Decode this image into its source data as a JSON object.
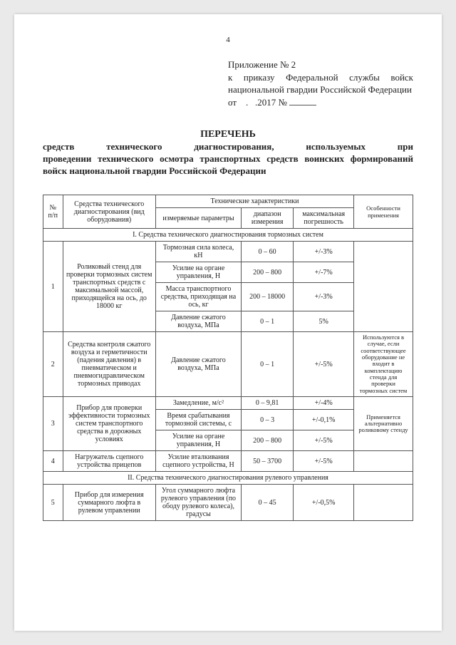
{
  "page_number": "4",
  "appendix": {
    "line1": "Приложение № 2",
    "line2": "к приказу Федеральной службы войск национальной гвардии Российской Федерации",
    "line3_a": "от",
    "line3_b": ".",
    "line3_c": ".2017 №"
  },
  "title": {
    "main": "ПЕРЕЧЕНЬ",
    "sub1": "средств технического диагностирования, используемых при",
    "sub2": "проведении технического осмотра транспортных средств воинских формирований войск национальной гвардии Российской Федерации"
  },
  "headers": {
    "num": "№ п/п",
    "name": "Средства технического диагностирования (вид оборудования)",
    "tech": "Технические характеристики",
    "param": "измеряемые параметры",
    "range": "диапазон измерения",
    "err": "максимальная погрешность",
    "note": "Особенности применения"
  },
  "section1": "I. Средства технического диагностирования тормозных систем",
  "section2": "II. Средства технического диагностирования рулевого управления",
  "rows": {
    "r1": {
      "num": "1",
      "name": "Роликовый стенд для проверки тормозных систем транспортных средств с максимальной массой, приходящейся на ось, до 18000 кг",
      "p1": "Тормозная сила колеса, кН",
      "d1": "0 – 60",
      "e1": "+/-3%",
      "p2": "Усилие на органе управления, Н",
      "d2": "200 – 800",
      "e2": "+/-7%",
      "p3": "Масса транспортного средства, приходящая на ось, кг",
      "d3": "200 – 18000",
      "e3": "+/-3%",
      "p4": "Давление сжатого воздуха, МПа",
      "d4": "0 – 1",
      "e4": "5%"
    },
    "r2": {
      "num": "2",
      "name": "Средства контроля сжатого воздуха и герметичности (падения давления) в пневматическом и пневмогидравлическом тормозных приводах",
      "p1": "Давление сжатого воздуха, МПа",
      "d1": "0 – 1",
      "e1": "+/-5%",
      "note": "Используются в случае, если соответствующее оборудование не входит в комплектацию стенда для проверки тормозных систем"
    },
    "r3": {
      "num": "3",
      "name": "Прибор для проверки эффективности тормозных систем транспортного средства в дорожных условиях",
      "p1": "Замедление, м/с²",
      "d1": "0 – 9,81",
      "e1": "+/-4%",
      "p2": "Время срабатывания тормозной системы, с",
      "d2": "0 – 3",
      "e2": "+/-0,1%",
      "p3": "Усилие на органе управления, Н",
      "d3": "200 – 800",
      "e3": "+/-5%",
      "note": "Применяется альтернативно роликовому стенду"
    },
    "r4": {
      "num": "4",
      "name": "Нагружатель сцепного устройства прицепов",
      "p1": "Усилие вталкивания сцепного устройства, Н",
      "d1": "50 – 3700",
      "e1": "+/-5%"
    },
    "r5": {
      "num": "5",
      "name": "Прибор для измерения суммарного люфта в рулевом управлении",
      "p1": "Угол суммарного люфта рулевого управления (по ободу рулевого колеса), градусы",
      "d1": "0 – 45",
      "e1": "+/-0,5%"
    }
  }
}
